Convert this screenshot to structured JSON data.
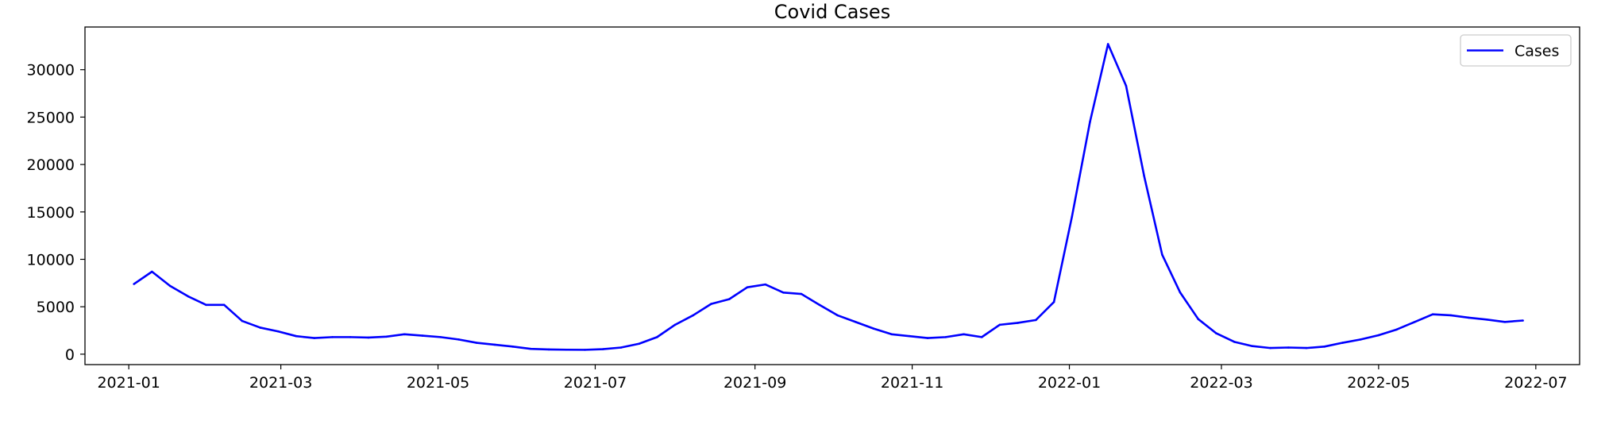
{
  "chart_data": {
    "type": "line",
    "title": "Covid Cases",
    "xlabel": "",
    "ylabel": "",
    "xlim": [
      "2020-12-15",
      "2022-07-18"
    ],
    "ylim": [
      -1100,
      34500
    ],
    "x_ticks": [
      "2021-01-01",
      "2021-03-01",
      "2021-05-01",
      "2021-07-01",
      "2021-09-01",
      "2021-11-01",
      "2022-01-01",
      "2022-03-01",
      "2022-05-01",
      "2022-07-01"
    ],
    "x_tick_labels": [
      "2021-01",
      "2021-03",
      "2021-05",
      "2021-07",
      "2021-09",
      "2021-11",
      "2022-01",
      "2022-03",
      "2022-05",
      "2022-07"
    ],
    "y_ticks": [
      0,
      5000,
      10000,
      15000,
      20000,
      25000,
      30000
    ],
    "y_tick_labels": [
      "0",
      "5000",
      "10000",
      "15000",
      "20000",
      "25000",
      "30000"
    ],
    "grid": false,
    "legend_position": "top-right",
    "series": [
      {
        "name": "Cases",
        "color": "#0000ff",
        "points": [
          [
            "2021-01-03",
            7400
          ],
          [
            "2021-01-10",
            8700
          ],
          [
            "2021-01-17",
            7200
          ],
          [
            "2021-01-24",
            6100
          ],
          [
            "2021-01-31",
            5200
          ],
          [
            "2021-02-07",
            5200
          ],
          [
            "2021-02-14",
            3500
          ],
          [
            "2021-02-21",
            2800
          ],
          [
            "2021-02-28",
            2400
          ],
          [
            "2021-03-07",
            1900
          ],
          [
            "2021-03-14",
            1700
          ],
          [
            "2021-03-21",
            1800
          ],
          [
            "2021-03-28",
            1800
          ],
          [
            "2021-04-04",
            1750
          ],
          [
            "2021-04-11",
            1850
          ],
          [
            "2021-04-18",
            2100
          ],
          [
            "2021-04-25",
            1950
          ],
          [
            "2021-05-02",
            1800
          ],
          [
            "2021-05-09",
            1550
          ],
          [
            "2021-05-16",
            1200
          ],
          [
            "2021-05-23",
            1000
          ],
          [
            "2021-05-30",
            800
          ],
          [
            "2021-06-06",
            560
          ],
          [
            "2021-06-13",
            500
          ],
          [
            "2021-06-20",
            470
          ],
          [
            "2021-06-27",
            460
          ],
          [
            "2021-07-04",
            530
          ],
          [
            "2021-07-11",
            700
          ],
          [
            "2021-07-18",
            1100
          ],
          [
            "2021-07-25",
            1800
          ],
          [
            "2021-08-01",
            3100
          ],
          [
            "2021-08-08",
            4100
          ],
          [
            "2021-08-15",
            5300
          ],
          [
            "2021-08-22",
            5800
          ],
          [
            "2021-08-29",
            7050
          ],
          [
            "2021-09-05",
            7350
          ],
          [
            "2021-09-12",
            6500
          ],
          [
            "2021-09-19",
            6350
          ],
          [
            "2021-09-26",
            5200
          ],
          [
            "2021-10-03",
            4100
          ],
          [
            "2021-10-10",
            3400
          ],
          [
            "2021-10-17",
            2700
          ],
          [
            "2021-10-24",
            2100
          ],
          [
            "2021-10-31",
            1900
          ],
          [
            "2021-11-07",
            1700
          ],
          [
            "2021-11-14",
            1800
          ],
          [
            "2021-11-21",
            2100
          ],
          [
            "2021-11-28",
            1800
          ],
          [
            "2021-12-05",
            3100
          ],
          [
            "2021-12-12",
            3300
          ],
          [
            "2021-12-19",
            3600
          ],
          [
            "2021-12-26",
            5500
          ],
          [
            "2022-01-02",
            14500
          ],
          [
            "2022-01-09",
            24500
          ],
          [
            "2022-01-16",
            32700
          ],
          [
            "2022-01-23",
            28300
          ],
          [
            "2022-01-30",
            18800
          ],
          [
            "2022-02-06",
            10500
          ],
          [
            "2022-02-13",
            6500
          ],
          [
            "2022-02-20",
            3700
          ],
          [
            "2022-02-27",
            2200
          ],
          [
            "2022-03-06",
            1300
          ],
          [
            "2022-03-13",
            850
          ],
          [
            "2022-03-20",
            650
          ],
          [
            "2022-03-27",
            700
          ],
          [
            "2022-04-03",
            650
          ],
          [
            "2022-04-10",
            800
          ],
          [
            "2022-04-17",
            1200
          ],
          [
            "2022-04-24",
            1550
          ],
          [
            "2022-05-01",
            2000
          ],
          [
            "2022-05-08",
            2600
          ],
          [
            "2022-05-15",
            3400
          ],
          [
            "2022-05-22",
            4200
          ],
          [
            "2022-05-29",
            4100
          ],
          [
            "2022-06-05",
            3850
          ],
          [
            "2022-06-12",
            3650
          ],
          [
            "2022-06-19",
            3400
          ],
          [
            "2022-06-26",
            3550
          ]
        ]
      }
    ]
  }
}
